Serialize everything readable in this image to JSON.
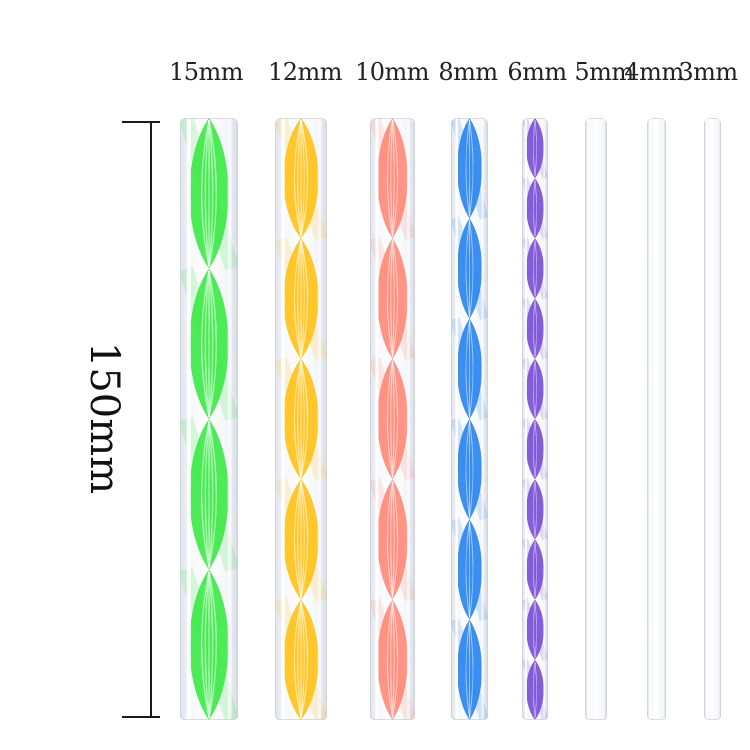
{
  "dimension": {
    "label": "150mm"
  },
  "rods": [
    {
      "size": "15mm",
      "color": "#3fe94a"
    },
    {
      "size": "12mm",
      "color": "#ffc21a"
    },
    {
      "size": "10mm",
      "color": "#ff8a7a"
    },
    {
      "size": "8mm",
      "color": "#2a86f0"
    },
    {
      "size": "6mm",
      "color": "#7a4fd8"
    },
    {
      "size": "5mm",
      "color": ""
    },
    {
      "size": "4mm",
      "color": ""
    },
    {
      "size": "3mm",
      "color": ""
    }
  ]
}
